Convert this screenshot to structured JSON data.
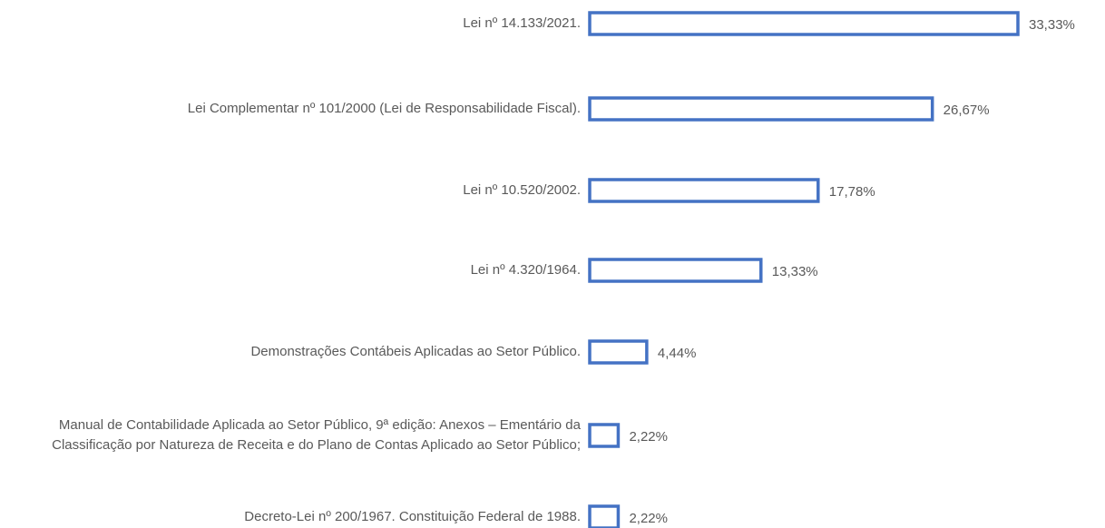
{
  "chart_data": {
    "type": "bar",
    "orientation": "horizontal",
    "color": "#4472c4",
    "categories": [
      "Lei nº 14.133/2021.",
      "Lei Complementar nº 101/2000 (Lei de Responsabilidade Fiscal).",
      "Lei nº 10.520/2002.",
      "Lei nº 4.320/1964.",
      "Demonstrações Contábeis Aplicadas ao Setor Público.",
      "Manual de Contabilidade Aplicada ao Setor Público, 9ª edição: Anexos – Ementário da Classificação por Natureza de Receita e do Plano de Contas Aplicado ao Setor Público;",
      "Decreto-Lei nº 200/1967. Constituição Federal de 1988."
    ],
    "values": [
      33.33,
      26.67,
      17.78,
      13.33,
      4.44,
      2.22,
      2.22
    ],
    "value_labels": [
      "33,33%",
      "26,67%",
      "17,78%",
      "13,33%",
      "4,44%",
      "2,22%",
      "2,22%"
    ]
  }
}
